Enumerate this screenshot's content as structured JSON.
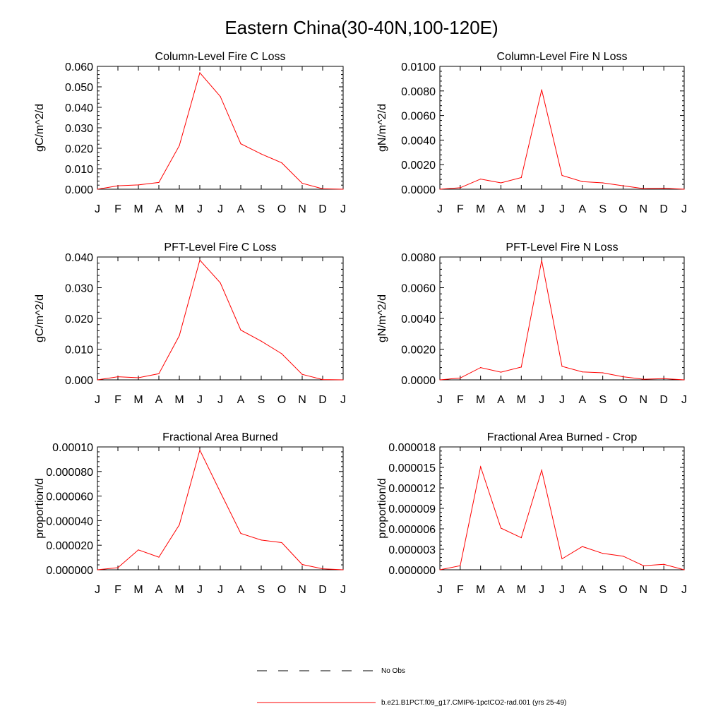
{
  "figure": {
    "title": "Eastern China(30-40N,100-120E)",
    "line_color": "#ff0000"
  },
  "legend": [
    {
      "label": "No Obs",
      "style": "dashed",
      "color": "#000000"
    },
    {
      "label": "b.e21.B1PCT.f09_g17.CMIP6-1pctCO2-rad.001 (yrs 25-49)",
      "style": "solid",
      "color": "#ff0000"
    }
  ],
  "chart_data": [
    {
      "type": "line",
      "title": "Column-Level Fire C Loss",
      "ylabel": "gC/m^2/d",
      "x": [
        "J",
        "F",
        "M",
        "A",
        "M",
        "J",
        "J",
        "A",
        "S",
        "O",
        "N",
        "D",
        "J"
      ],
      "yticks": [
        "0.000",
        "0.010",
        "0.020",
        "0.030",
        "0.040",
        "0.050",
        "0.060"
      ],
      "ylim": [
        0,
        0.06
      ],
      "series": [
        {
          "values": [
            0.0,
            0.0017,
            0.0021,
            0.0033,
            0.0213,
            0.0569,
            0.0453,
            0.0222,
            0.0172,
            0.0129,
            0.0029,
            0.0002,
            0.0
          ]
        }
      ]
    },
    {
      "type": "line",
      "title": "Column-Level Fire N Loss",
      "ylabel": "gN/m^2/d",
      "x": [
        "J",
        "F",
        "M",
        "A",
        "M",
        "J",
        "J",
        "A",
        "S",
        "O",
        "N",
        "D",
        "J"
      ],
      "yticks": [
        "0.0000",
        "0.0020",
        "0.0040",
        "0.0060",
        "0.0080",
        "0.0100"
      ],
      "ylim": [
        0,
        0.01
      ],
      "series": [
        {
          "values": [
            0.0,
            0.00012,
            0.00083,
            0.00052,
            0.00095,
            0.0081,
            0.00112,
            0.00062,
            0.00052,
            0.00028,
            5e-05,
            8e-05,
            0.0
          ]
        }
      ]
    },
    {
      "type": "line",
      "title": "PFT-Level Fire C Loss",
      "ylabel": "gC/m^2/d",
      "x": [
        "J",
        "F",
        "M",
        "A",
        "M",
        "J",
        "J",
        "A",
        "S",
        "O",
        "N",
        "D",
        "J"
      ],
      "yticks": [
        "0.000",
        "0.010",
        "0.020",
        "0.030",
        "0.040"
      ],
      "ylim": [
        0,
        0.04
      ],
      "series": [
        {
          "values": [
            0.0,
            0.001,
            0.0007,
            0.002,
            0.0144,
            0.039,
            0.0316,
            0.0162,
            0.0126,
            0.0085,
            0.0018,
            0.0001,
            0.0
          ]
        }
      ]
    },
    {
      "type": "line",
      "title": "PFT-Level Fire N Loss",
      "ylabel": "gN/m^2/d",
      "x": [
        "J",
        "F",
        "M",
        "A",
        "M",
        "J",
        "J",
        "A",
        "S",
        "O",
        "N",
        "D",
        "J"
      ],
      "yticks": [
        "0.0000",
        "0.0020",
        "0.0040",
        "0.0060",
        "0.0080"
      ],
      "ylim": [
        0,
        0.008
      ],
      "series": [
        {
          "values": [
            0.0,
            0.00012,
            0.0008,
            0.0005,
            0.00083,
            0.00778,
            0.00088,
            0.00052,
            0.00046,
            0.0002,
            4e-05,
            8e-05,
            0.0
          ]
        }
      ]
    },
    {
      "type": "line",
      "title": "Fractional Area Burned",
      "ylabel": "proportion/d",
      "x": [
        "J",
        "F",
        "M",
        "A",
        "M",
        "J",
        "J",
        "A",
        "S",
        "O",
        "N",
        "D",
        "J"
      ],
      "yticks": [
        "0.000000",
        "0.000020",
        "0.000040",
        "0.000060",
        "0.000080",
        "0.00010"
      ],
      "ylim": [
        0,
        0.0001
      ],
      "series": [
        {
          "values": [
            0.0,
            1.7e-06,
            1.62e-05,
            1.03e-05,
            3.66e-05,
            9.75e-05,
            6.33e-05,
            2.96e-05,
            2.42e-05,
            2.21e-05,
            4.3e-06,
            8e-07,
            0.0
          ]
        }
      ]
    },
    {
      "type": "line",
      "title": "Fractional Area Burned - Crop",
      "ylabel": "proportion/d",
      "x": [
        "J",
        "F",
        "M",
        "A",
        "M",
        "J",
        "J",
        "A",
        "S",
        "O",
        "N",
        "D",
        "J"
      ],
      "yticks": [
        "0.000000",
        "0.000003",
        "0.000006",
        "0.000009",
        "0.000012",
        "0.000015",
        "0.000018"
      ],
      "ylim": [
        0,
        1.8e-05
      ],
      "series": [
        {
          "values": [
            0.0,
            6e-07,
            1.51e-05,
            6.1e-06,
            4.7e-06,
            1.46e-05,
            1.6e-06,
            3.4e-06,
            2.4e-06,
            2e-06,
            6e-07,
            8e-07,
            0.0
          ]
        }
      ]
    }
  ]
}
